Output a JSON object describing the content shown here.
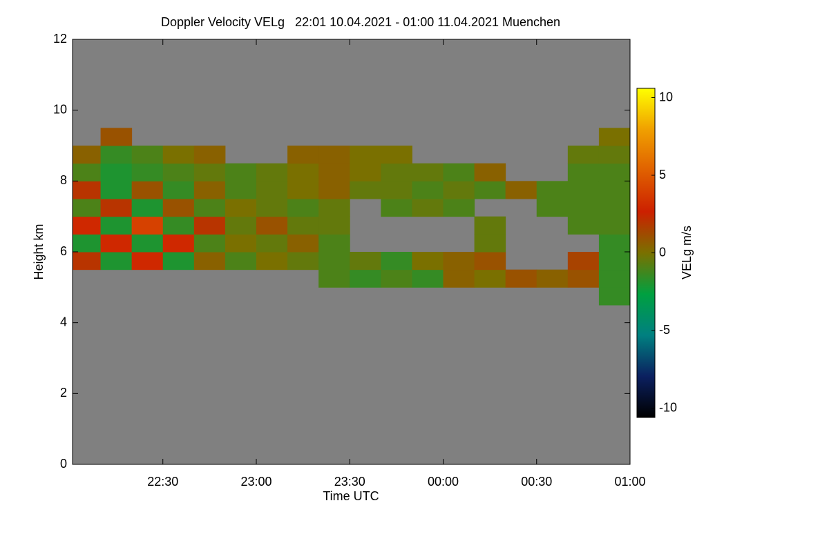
{
  "chart_data": {
    "type": "heatmap",
    "title": "Doppler Velocity VELg   22:01 10.04.2021 - 01:00 11.04.2021 Muenchen",
    "x_label": "Time UTC",
    "y_label": "Height km",
    "colorbar_label": "VELg m/s",
    "x": [
      22.0167,
      22.1667,
      22.3333,
      22.5,
      22.6667,
      22.8333,
      23,
      23.1667,
      23.3333,
      23.5,
      23.6667,
      23.8333,
      24,
      24.1667,
      24.3333,
      24.5,
      24.6667,
      24.8333,
      25
    ],
    "y": [
      0,
      0.5,
      1,
      1.5,
      2,
      2.5,
      3,
      3.5,
      4,
      4.5,
      5,
      5.5,
      6,
      6.5,
      7,
      7.5,
      8,
      8.5,
      9,
      9.5,
      10,
      10.5,
      11,
      11.5,
      12
    ],
    "z": [
      [
        null,
        null,
        null,
        null,
        null,
        null,
        null,
        null,
        null,
        null,
        null,
        null,
        null,
        null,
        null,
        null,
        null,
        null
      ],
      [
        null,
        null,
        null,
        null,
        null,
        null,
        null,
        null,
        null,
        null,
        null,
        null,
        null,
        null,
        null,
        null,
        null,
        null
      ],
      [
        null,
        null,
        null,
        null,
        null,
        null,
        null,
        null,
        null,
        null,
        null,
        null,
        null,
        null,
        null,
        null,
        null,
        null
      ],
      [
        null,
        null,
        null,
        null,
        null,
        null,
        null,
        null,
        null,
        null,
        null,
        null,
        null,
        null,
        null,
        null,
        null,
        null
      ],
      [
        null,
        null,
        null,
        null,
        null,
        null,
        null,
        null,
        null,
        null,
        null,
        null,
        null,
        null,
        null,
        null,
        null,
        null
      ],
      [
        null,
        null,
        null,
        null,
        null,
        null,
        null,
        null,
        null,
        null,
        null,
        null,
        null,
        null,
        null,
        null,
        null,
        null
      ],
      [
        null,
        null,
        null,
        null,
        null,
        null,
        null,
        null,
        null,
        null,
        null,
        null,
        null,
        null,
        null,
        null,
        null,
        null
      ],
      [
        null,
        null,
        null,
        null,
        null,
        null,
        null,
        null,
        null,
        null,
        null,
        null,
        null,
        null,
        null,
        null,
        null,
        null
      ],
      [
        null,
        null,
        null,
        null,
        null,
        null,
        null,
        null,
        null,
        null,
        null,
        null,
        null,
        null,
        null,
        null,
        null,
        null
      ],
      [
        null,
        null,
        null,
        null,
        null,
        null,
        null,
        null,
        null,
        null,
        null,
        null,
        null,
        null,
        null,
        null,
        null,
        -1.5
      ],
      [
        null,
        null,
        null,
        null,
        null,
        null,
        null,
        null,
        -1,
        -1.5,
        -1,
        -1.5,
        0.5,
        0,
        1,
        0.5,
        1,
        -1.5
      ],
      [
        2,
        -2,
        3,
        -2,
        0.5,
        -1,
        0,
        -0.5,
        -1,
        -0.5,
        -1.5,
        0,
        0.5,
        1,
        null,
        null,
        1.5,
        -1.5
      ],
      [
        -2,
        3,
        -2,
        3,
        -1,
        0,
        -0.5,
        0.5,
        -1,
        null,
        null,
        null,
        null,
        -0.5,
        null,
        null,
        null,
        -1.5
      ],
      [
        3,
        -2,
        4,
        -1.5,
        2,
        -0.5,
        1,
        -0.5,
        -0.5,
        null,
        null,
        null,
        null,
        -0.5,
        null,
        null,
        -1,
        -1
      ],
      [
        -1,
        2,
        -2,
        1,
        -1,
        0,
        -0.5,
        -1,
        -0.5,
        null,
        -1,
        -0.5,
        -1,
        null,
        null,
        -1,
        -1,
        -1
      ],
      [
        2,
        -2,
        1,
        -1.5,
        0.5,
        -1,
        -0.5,
        0,
        0.5,
        -0.5,
        -0.5,
        -1,
        -0.5,
        -1,
        0.5,
        -1,
        -1,
        -1
      ],
      [
        -1,
        -2,
        -1.5,
        -1,
        -0.5,
        -1,
        -0.5,
        0,
        0.5,
        0,
        -0.5,
        -0.5,
        -1,
        0.5,
        null,
        null,
        -1,
        -1
      ],
      [
        0.5,
        -1.5,
        -1,
        0,
        0.5,
        null,
        null,
        0.5,
        0.5,
        0,
        0,
        null,
        null,
        null,
        null,
        null,
        -0.5,
        -0.5
      ],
      [
        null,
        1,
        null,
        null,
        null,
        null,
        null,
        null,
        null,
        null,
        null,
        null,
        null,
        null,
        null,
        null,
        null,
        0
      ],
      [
        null,
        null,
        null,
        null,
        null,
        null,
        null,
        null,
        null,
        null,
        null,
        null,
        null,
        null,
        null,
        null,
        null,
        null
      ],
      [
        null,
        null,
        null,
        null,
        null,
        null,
        null,
        null,
        null,
        null,
        null,
        null,
        null,
        null,
        null,
        null,
        null,
        null
      ],
      [
        null,
        null,
        null,
        null,
        null,
        null,
        null,
        null,
        null,
        null,
        null,
        null,
        null,
        null,
        null,
        null,
        null,
        null
      ],
      [
        null,
        null,
        null,
        null,
        null,
        null,
        null,
        null,
        null,
        null,
        null,
        null,
        null,
        null,
        null,
        null,
        null,
        null
      ],
      [
        null,
        null,
        null,
        null,
        null,
        null,
        null,
        null,
        null,
        null,
        null,
        null,
        null,
        null,
        null,
        null,
        null,
        null
      ]
    ],
    "xlim": [
      22.0167,
      25
    ],
    "ylim": [
      0,
      12
    ],
    "xticks": [
      {
        "value": 22.5,
        "label": "22:30"
      },
      {
        "value": 23,
        "label": "23:00"
      },
      {
        "value": 23.5,
        "label": "23:30"
      },
      {
        "value": 24,
        "label": "00:00"
      },
      {
        "value": 24.5,
        "label": "00:30"
      },
      {
        "value": 25,
        "label": "01:00"
      }
    ],
    "yticks": [
      0,
      2,
      4,
      6,
      8,
      10,
      12
    ],
    "clim": [
      -10.6,
      10.6
    ],
    "cticks": [
      -10,
      -5,
      0,
      5,
      10
    ],
    "colormap": [
      "#000000",
      "#0b2060",
      "#008080",
      "#00a040",
      "#7a7000",
      "#cc2000",
      "#e06000",
      "#f0a000",
      "#ffff00"
    ],
    "nan_color": "#808080"
  }
}
